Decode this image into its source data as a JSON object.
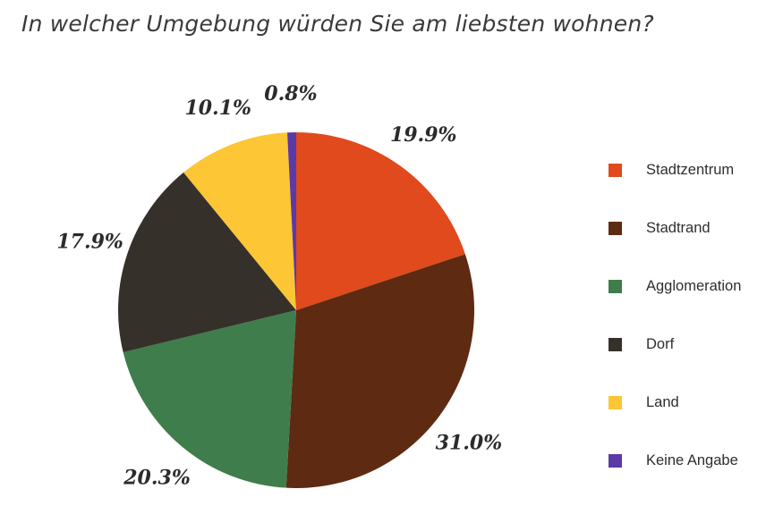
{
  "title": "In welcher Umgebung würden Sie am liebsten wohnen?",
  "chart_data": {
    "type": "pie",
    "title": "In welcher Umgebung würden Sie am liebsten wohnen?",
    "categories": [
      "Stadtzentrum",
      "Stadtrand",
      "Agglomeration",
      "Dorf",
      "Land",
      "Keine Angabe"
    ],
    "values": [
      19.9,
      31.0,
      20.3,
      17.9,
      10.1,
      0.8
    ],
    "labels": [
      "19.9%",
      "31.0%",
      "20.3%",
      "17.9%",
      "10.1%",
      "0.8%"
    ],
    "colors": [
      "#e04a1c",
      "#5e2a12",
      "#3f7d4c",
      "#35312a",
      "#fcc634",
      "#5b3aa8"
    ],
    "legend_position": "right",
    "start": "top",
    "direction": "clockwise"
  }
}
